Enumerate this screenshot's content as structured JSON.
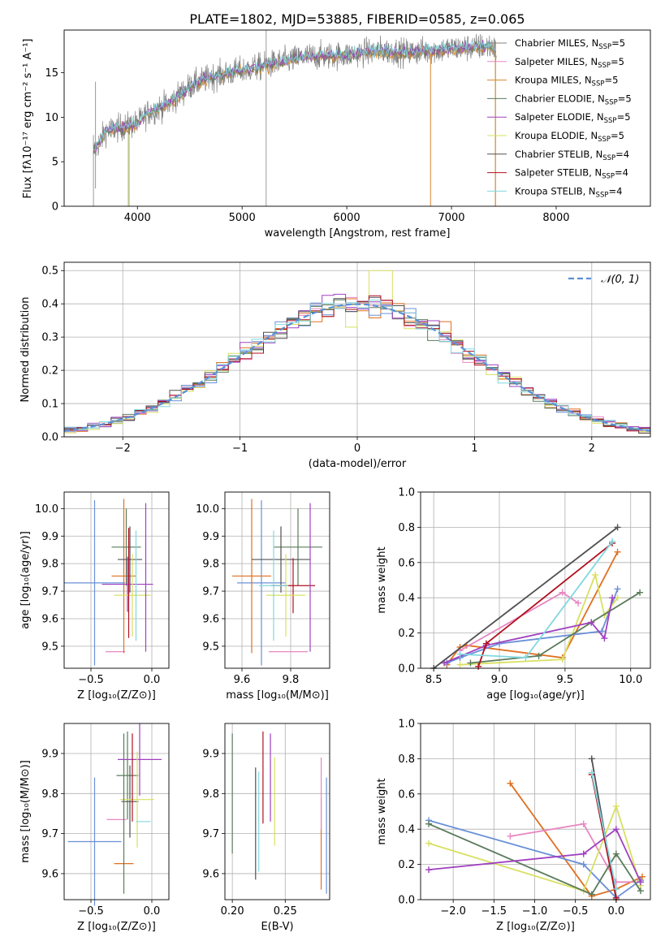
{
  "colors": [
    "#808080",
    "#e887c2",
    "#d8862a",
    "#5b7b5b",
    "#a040c0",
    "#d8e060",
    "#505050",
    "#b01020",
    "#80d8e0",
    "#6a90d8",
    "#e07020",
    "#4d9060"
  ],
  "spectrum": {
    "title": "PLATE=1802, MJD=53885, FIBERID=0585, z=0.065",
    "xlabel": "wavelength [Angstrom, rest frame]",
    "ylabel": "Flux [fλ10⁻¹⁷ erg cm⁻² s⁻¹ A⁻¹]",
    "xticks": [
      "4000",
      "5000",
      "6000",
      "7000",
      "8000"
    ],
    "yticks": [
      "0",
      "5",
      "10",
      "15"
    ],
    "xlim": [
      3300,
      8900
    ],
    "ylim": [
      0,
      19.8
    ],
    "legend": [
      {
        "label": "Chabrier MILES, N",
        "sub": "SSP",
        "suffix": "=5",
        "color": "#808080"
      },
      {
        "label": "Salpeter MILES, N",
        "sub": "SSP",
        "suffix": "=5",
        "color": "#e887c2"
      },
      {
        "label": "Kroupa MILES, N",
        "sub": "SSP",
        "suffix": "=5",
        "color": "#d8862a"
      },
      {
        "label": "Chabrier ELODIE, N",
        "sub": "SSP",
        "suffix": "=5",
        "color": "#5b7b5b"
      },
      {
        "label": "Salpeter ELODIE, N",
        "sub": "SSP",
        "suffix": "=5",
        "color": "#a040c0"
      },
      {
        "label": "Kroupa ELODIE, N",
        "sub": "SSP",
        "suffix": "=5",
        "color": "#d8e060"
      },
      {
        "label": "Chabrier STELIB, N",
        "sub": "SSP",
        "suffix": "=4",
        "color": "#505050"
      },
      {
        "label": "Salpeter STELIB, N",
        "sub": "SSP",
        "suffix": "=4",
        "color": "#b01020"
      },
      {
        "label": "Kroupa STELIB, N",
        "sub": "SSP",
        "suffix": "=4",
        "color": "#80d8e0"
      }
    ],
    "trend": [
      [
        3580,
        6
      ],
      [
        3700,
        8.5
      ],
      [
        3900,
        9
      ],
      [
        4000,
        9.3
      ],
      [
        4100,
        10.5
      ],
      [
        4300,
        11.5
      ],
      [
        4500,
        13.5
      ],
      [
        4700,
        14.5
      ],
      [
        4900,
        15
      ],
      [
        5100,
        15.5
      ],
      [
        5300,
        16
      ],
      [
        5600,
        16.8
      ],
      [
        6000,
        17
      ],
      [
        6300,
        17.5
      ],
      [
        6600,
        17.3
      ],
      [
        7000,
        17.7
      ],
      [
        7400,
        18
      ],
      [
        7430,
        17
      ]
    ]
  },
  "residuals": {
    "xlabel": "(data-model)/error",
    "ylabel": "Normed distribution",
    "xticks": [
      "−2",
      "−1",
      "0",
      "1",
      "2"
    ],
    "yticks": [
      "0.0",
      "0.1",
      "0.2",
      "0.3",
      "0.4",
      "0.5"
    ],
    "xlim": [
      -2.5,
      2.5
    ],
    "ylim": [
      0,
      0.525
    ],
    "legend": "𝒩(0, 1)",
    "bin_width": 0.1
  },
  "panels": {
    "age_vs_Z": {
      "xlabel": "Z [log₁₀(Z/Z⊙)]",
      "ylabel": "age  [log₁₀(age/yr)]",
      "xticks": [
        "−0.5",
        "0.0"
      ],
      "xtickvals": [
        -0.5,
        0.0
      ],
      "yticks": [
        "9.5",
        "9.6",
        "9.7",
        "9.8",
        "9.9",
        "10.0"
      ],
      "ytickvals": [
        9.5,
        9.6,
        9.7,
        9.8,
        9.9,
        10.0
      ],
      "xlim": [
        -0.72,
        0.14
      ],
      "ylim": [
        9.42,
        10.06
      ],
      "points": [
        {
          "x": -0.47,
          "y": 9.73,
          "xe": 0.25,
          "ye": 0.3,
          "c": "#6a90d8"
        },
        {
          "x": -0.3,
          "y": 9.48,
          "xe": 0.08,
          "ye": 0.0,
          "c": "#e887c2"
        },
        {
          "x": -0.23,
          "y": 9.755,
          "xe": 0.1,
          "ye": 0.28,
          "c": "#e07020"
        },
        {
          "x": -0.21,
          "y": 9.86,
          "xe": 0.12,
          "ye": 0.14,
          "c": "#5b7b5b"
        },
        {
          "x": -0.18,
          "y": 9.815,
          "xe": 0.1,
          "ye": 0.12,
          "c": "#505050"
        },
        {
          "x": -0.2,
          "y": 9.725,
          "xe": 0.21,
          "ye": 0.1,
          "c": "#a040c0"
        },
        {
          "x": -0.16,
          "y": 9.685,
          "xe": 0.15,
          "ye": 0.15,
          "c": "#d8e060"
        },
        {
          "x": -0.05,
          "y": 9.75,
          "xe": 0.0,
          "ye": 0.27,
          "c": "#a040c0"
        },
        {
          "x": -0.19,
          "y": 9.73,
          "xe": 0.0,
          "ye": 0.2,
          "c": "#b01020"
        },
        {
          "x": -0.13,
          "y": 9.72,
          "xe": 0.0,
          "ye": 0.2,
          "c": "#80d8e0"
        }
      ]
    },
    "age_vs_mass": {
      "xlabel": "mass [log₁₀(M/M⊙)]",
      "ylabel": "",
      "xticks": [
        "9.6",
        "9.8"
      ],
      "xtickvals": [
        9.6,
        9.8
      ],
      "yticks": [
        "9.5",
        "9.6",
        "9.7",
        "9.8",
        "9.9",
        "10.0"
      ],
      "ytickvals": [
        9.5,
        9.6,
        9.7,
        9.8,
        9.9,
        10.0
      ],
      "xlim": [
        9.53,
        9.96
      ],
      "ylim": [
        9.42,
        10.06
      ],
      "points": [
        {
          "x": 9.68,
          "y": 9.73,
          "xe": 0.1,
          "ye": 0.3,
          "c": "#6a90d8"
        },
        {
          "x": 9.64,
          "y": 9.755,
          "xe": 0.08,
          "ye": 0.28,
          "c": "#e07020"
        },
        {
          "x": 9.79,
          "y": 9.48,
          "xe": 0.08,
          "ye": 0.0,
          "c": "#e887c2"
        },
        {
          "x": 9.83,
          "y": 9.86,
          "xe": 0.1,
          "ye": 0.14,
          "c": "#5b7b5b"
        },
        {
          "x": 9.76,
          "y": 9.815,
          "xe": 0.12,
          "ye": 0.12,
          "c": "#505050"
        },
        {
          "x": 9.81,
          "y": 9.72,
          "xe": 0.09,
          "ye": 0.1,
          "c": "#b01020"
        },
        {
          "x": 9.78,
          "y": 9.685,
          "xe": 0.08,
          "ye": 0.15,
          "c": "#d8e060"
        },
        {
          "x": 9.88,
          "y": 9.75,
          "xe": 0.0,
          "ye": 0.27,
          "c": "#a040c0"
        },
        {
          "x": 9.73,
          "y": 9.72,
          "xe": 0.06,
          "ye": 0.2,
          "c": "#80d8e0"
        }
      ]
    },
    "mass_vs_Z": {
      "xlabel": "Z [log₁₀(Z/Z⊙)]",
      "ylabel": "mass [log₁₀(M/M⊙)]",
      "xticks": [
        "−0.5",
        "0.0"
      ],
      "xtickvals": [
        -0.5,
        0.0
      ],
      "yticks": [
        "9.6",
        "9.7",
        "9.8",
        "9.9"
      ],
      "ytickvals": [
        9.6,
        9.7,
        9.8,
        9.9
      ],
      "xlim": [
        -0.72,
        0.14
      ],
      "ylim": [
        9.535,
        9.975
      ],
      "points": [
        {
          "x": -0.47,
          "y": 9.68,
          "xe": 0.22,
          "ye": 0.16,
          "c": "#6a90d8"
        },
        {
          "x": -0.29,
          "y": 9.735,
          "xe": 0.08,
          "ye": 0.0,
          "c": "#e887c2"
        },
        {
          "x": -0.23,
          "y": 9.625,
          "xe": 0.08,
          "ye": 0.0,
          "c": "#e07020"
        },
        {
          "x": -0.2,
          "y": 9.845,
          "xe": 0.09,
          "ye": 0.11,
          "c": "#5b7b5b"
        },
        {
          "x": -0.18,
          "y": 9.78,
          "xe": 0.07,
          "ye": 0.09,
          "c": "#505050"
        },
        {
          "x": -0.1,
          "y": 9.885,
          "xe": 0.18,
          "ye": 0.09,
          "c": "#a040c0"
        },
        {
          "x": -0.12,
          "y": 9.785,
          "xe": 0.14,
          "ye": 0.12,
          "c": "#d8e060"
        },
        {
          "x": -0.16,
          "y": 9.84,
          "xe": 0.0,
          "ye": 0.11,
          "c": "#b01020"
        },
        {
          "x": -0.07,
          "y": 9.73,
          "xe": 0.06,
          "ye": 0.0,
          "c": "#80d8e0"
        },
        {
          "x": -0.23,
          "y": 9.75,
          "xe": 0.0,
          "ye": 0.2,
          "c": "#5b7b5b"
        }
      ]
    },
    "mass_vs_EBV": {
      "xlabel": "E(B-V)",
      "ylabel": "",
      "xticks": [
        "0.20",
        "0.25"
      ],
      "xtickvals": [
        0.2,
        0.25
      ],
      "yticks": [
        "9.6",
        "9.7",
        "9.8",
        "9.9"
      ],
      "ytickvals": [
        9.6,
        9.7,
        9.8,
        9.9
      ],
      "xlim": [
        0.193,
        0.292
      ],
      "ylim": [
        9.535,
        9.975
      ],
      "points": [
        {
          "x": 0.2,
          "y": 9.8,
          "xe": 0,
          "ye": 0.15,
          "c": "#5b7b5b"
        },
        {
          "x": 0.222,
          "y": 9.725,
          "xe": 0,
          "ye": 0.14,
          "c": "#505050"
        },
        {
          "x": 0.225,
          "y": 9.73,
          "xe": 0,
          "ye": 0.125,
          "c": "#80d8e0"
        },
        {
          "x": 0.229,
          "y": 9.84,
          "xe": 0,
          "ye": 0.115,
          "c": "#b01020"
        },
        {
          "x": 0.236,
          "y": 9.84,
          "xe": 0,
          "ye": 0.11,
          "c": "#a040c0"
        },
        {
          "x": 0.24,
          "y": 9.78,
          "xe": 0,
          "ye": 0.11,
          "c": "#d8e060"
        },
        {
          "x": 0.284,
          "y": 9.675,
          "xe": 0,
          "ye": 0.115,
          "c": "#e07020"
        },
        {
          "x": 0.284,
          "y": 9.8,
          "xe": 0,
          "ye": 0.09,
          "c": "#e887c2"
        },
        {
          "x": 0.289,
          "y": 9.695,
          "xe": 0,
          "ye": 0.145,
          "c": "#6a90d8"
        }
      ]
    },
    "weight_vs_age": {
      "xlabel": "age  [log₁₀(age/yr)]",
      "ylabel": "mass weight",
      "xticks": [
        "8.5",
        "9.0",
        "9.5",
        "10.0"
      ],
      "xtickvals": [
        8.5,
        9.0,
        9.5,
        10.0
      ],
      "yticks": [
        "0.0",
        "0.2",
        "0.4",
        "0.6",
        "0.8",
        "1.0"
      ],
      "ytickvals": [
        0,
        0.2,
        0.4,
        0.6,
        0.8,
        1.0
      ],
      "xlim": [
        8.4,
        10.15
      ],
      "ylim": [
        0,
        1.0
      ],
      "series": [
        {
          "c": "#e07020",
          "pts": [
            [
              8.6,
              0.02
            ],
            [
              8.7,
              0.12
            ],
            [
              8.75,
              0.13
            ],
            [
              9.48,
              0.06
            ],
            [
              9.9,
              0.66
            ]
          ]
        },
        {
          "c": "#e887c2",
          "pts": [
            [
              8.7,
              0.1
            ],
            [
              9.48,
              0.43
            ],
            [
              9.6,
              0.37
            ]
          ]
        },
        {
          "c": "#6a90d8",
          "pts": [
            [
              8.6,
              0.03
            ],
            [
              8.7,
              0.06
            ],
            [
              9.0,
              0.14
            ],
            [
              9.78,
              0.21
            ],
            [
              9.9,
              0.45
            ]
          ]
        },
        {
          "c": "#d8e060",
          "pts": [
            [
              8.7,
              0.02
            ],
            [
              9.48,
              0.05
            ],
            [
              9.73,
              0.53
            ],
            [
              9.8,
              0.3
            ],
            [
              9.9,
              0.4
            ]
          ]
        },
        {
          "c": "#5b7b5b",
          "pts": [
            [
              8.78,
              0.03
            ],
            [
              9.3,
              0.07
            ],
            [
              9.7,
              0.26
            ],
            [
              10.07,
              0.43
            ]
          ]
        },
        {
          "c": "#a040c0",
          "pts": [
            [
              8.58,
              0.03
            ],
            [
              8.9,
              0.13
            ],
            [
              9.7,
              0.26
            ],
            [
              9.8,
              0.17
            ],
            [
              9.86,
              0.4
            ]
          ]
        },
        {
          "c": "#505050",
          "pts": [
            [
              8.5,
              0.0
            ],
            [
              9.9,
              0.8
            ]
          ]
        },
        {
          "c": "#b01020",
          "pts": [
            [
              8.84,
              0.01
            ],
            [
              8.9,
              0.14
            ],
            [
              9.86,
              0.71
            ]
          ]
        },
        {
          "c": "#80d8e0",
          "pts": [
            [
              8.7,
              0.08
            ],
            [
              9.2,
              0.06
            ],
            [
              9.86,
              0.72
            ]
          ]
        }
      ]
    },
    "weight_vs_Z": {
      "xlabel": "Z [log₁₀(Z/Z⊙)]",
      "ylabel": "mass weight",
      "xticks": [
        "−2.0",
        "−1.5",
        "−1.0",
        "−0.5",
        "0.0"
      ],
      "xtickvals": [
        -2.0,
        -1.5,
        -1.0,
        -0.5,
        0.0
      ],
      "yticks": [
        "0.0",
        "0.2",
        "0.4",
        "0.6",
        "0.8",
        "1.0"
      ],
      "ytickvals": [
        0,
        0.2,
        0.4,
        0.6,
        0.8,
        1.0
      ],
      "xlim": [
        -2.4,
        0.42
      ],
      "ylim": [
        0,
        1.0
      ],
      "series": [
        {
          "c": "#e07020",
          "pts": [
            [
              -1.3,
              0.66
            ],
            [
              -0.3,
              0.02
            ],
            [
              0.0,
              0.06
            ],
            [
              0.32,
              0.13
            ]
          ]
        },
        {
          "c": "#e887c2",
          "pts": [
            [
              -1.3,
              0.36
            ],
            [
              -0.4,
              0.43
            ],
            [
              0.0,
              0.1
            ],
            [
              0.3,
              0.1
            ]
          ]
        },
        {
          "c": "#6a90d8",
          "pts": [
            [
              -2.3,
              0.45
            ],
            [
              -0.4,
              0.2
            ],
            [
              0.0,
              0.01
            ],
            [
              0.3,
              0.11
            ]
          ]
        },
        {
          "c": "#d8e060",
          "pts": [
            [
              -2.3,
              0.32
            ],
            [
              -0.4,
              0.05
            ],
            [
              0.0,
              0.53
            ],
            [
              0.3,
              0.08
            ]
          ]
        },
        {
          "c": "#5b7b5b",
          "pts": [
            [
              -2.3,
              0.43
            ],
            [
              -0.3,
              0.03
            ],
            [
              0.0,
              0.26
            ],
            [
              0.3,
              0.05
            ]
          ]
        },
        {
          "c": "#a040c0",
          "pts": [
            [
              -2.3,
              0.17
            ],
            [
              -0.4,
              0.26
            ],
            [
              0.0,
              0.4
            ],
            [
              0.3,
              0.1
            ]
          ]
        },
        {
          "c": "#505050",
          "pts": [
            [
              -0.3,
              0.8
            ],
            [
              0.0,
              0.0
            ]
          ]
        },
        {
          "c": "#b01020",
          "pts": [
            [
              -0.3,
              0.71
            ],
            [
              0.0,
              0.01
            ]
          ]
        },
        {
          "c": "#80d8e0",
          "pts": [
            [
              -0.3,
              0.72
            ],
            [
              0.0,
              0.06
            ]
          ]
        }
      ]
    }
  },
  "chart_data": [
    {
      "type": "line",
      "title": "PLATE=1802, MJD=53885, FIBERID=0585, z=0.065",
      "xlabel": "wavelength [Angstrom, rest frame]",
      "ylabel": "Flux [fλ10⁻¹⁷ erg cm⁻² s⁻¹ A⁻¹]",
      "xlim": [
        3300,
        8900
      ],
      "ylim": [
        0,
        19.8
      ]
    },
    {
      "type": "bar",
      "xlabel": "(data-model)/error",
      "ylabel": "Normed distribution",
      "xlim": [
        -2.5,
        2.5
      ],
      "ylim": [
        0,
        0.525
      ]
    },
    {
      "type": "scatter",
      "xlabel": "Z [log₁₀(Z/Z⊙)]",
      "ylabel": "age  [log₁₀(age/yr)]"
    },
    {
      "type": "scatter",
      "xlabel": "mass [log₁₀(M/M⊙)]"
    },
    {
      "type": "line",
      "xlabel": "age  [log₁₀(age/yr)]",
      "ylabel": "mass weight"
    },
    {
      "type": "scatter",
      "xlabel": "Z [log₁₀(Z/Z⊙)]",
      "ylabel": "mass [log₁₀(M/M⊙)]"
    },
    {
      "type": "scatter",
      "xlabel": "E(B-V)"
    },
    {
      "type": "line",
      "xlabel": "Z [log₁₀(Z/Z⊙)]",
      "ylabel": "mass weight"
    }
  ]
}
